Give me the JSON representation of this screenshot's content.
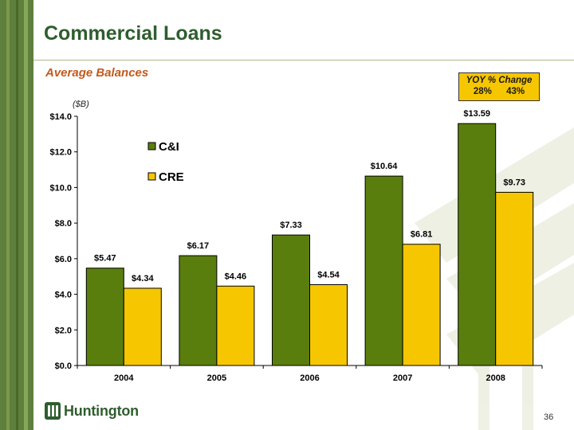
{
  "slide": {
    "title": "Commercial Loans",
    "subtitle": "Average Balances",
    "unit_note": "($B)",
    "page_number": "36",
    "logo_text": "Huntington"
  },
  "yoy": {
    "heading": "YOY % Change",
    "values": [
      "28%",
      "43%"
    ],
    "fill_color": "#f6c600"
  },
  "chart_data": {
    "type": "bar",
    "title": "",
    "xlabel": "",
    "ylabel": "($B)",
    "categories": [
      "2004",
      "2005",
      "2006",
      "2007",
      "2008"
    ],
    "series": [
      {
        "name": "C&I",
        "values": [
          5.47,
          6.17,
          7.33,
          10.64,
          13.59
        ],
        "labels": [
          "$5.47",
          "$6.17",
          "$7.33",
          "$10.64",
          "$13.59"
        ],
        "color": "#5a7e0e"
      },
      {
        "name": "CRE",
        "values": [
          4.34,
          4.46,
          4.54,
          6.81,
          9.73
        ],
        "labels": [
          "$4.34",
          "$4.46",
          "$4.54",
          "$6.81",
          "$9.73"
        ],
        "color": "#f6c600"
      }
    ],
    "ylim": [
      0,
      14
    ],
    "yticks": [
      0,
      2,
      4,
      6,
      8,
      10,
      12,
      14
    ],
    "ytick_labels": [
      "$0.0",
      "$2.0",
      "$4.0",
      "$6.0",
      "$8.0",
      "$10.0",
      "$12.0",
      "$14.0"
    ],
    "grid": false,
    "legend": "top-left"
  },
  "colors": {
    "sidebar": "#5f7f3c",
    "title": "#2f5d2f",
    "subtitle": "#c25a1c"
  }
}
